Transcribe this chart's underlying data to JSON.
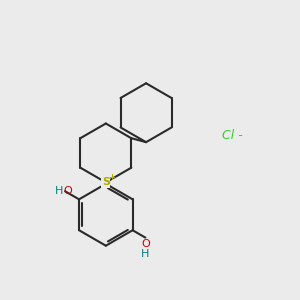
{
  "background_color": "#ebebeb",
  "line_color": "#2a2a2a",
  "bond_lw": 1.5,
  "S_color": "#aaaa00",
  "O_color": "#cc0000",
  "H_color": "#008080",
  "Cl_color": "#33cc33",
  "figsize": [
    3.0,
    3.0
  ],
  "dpi": 100,
  "xlim": [
    0,
    10
  ],
  "ylim": [
    0,
    10
  ]
}
